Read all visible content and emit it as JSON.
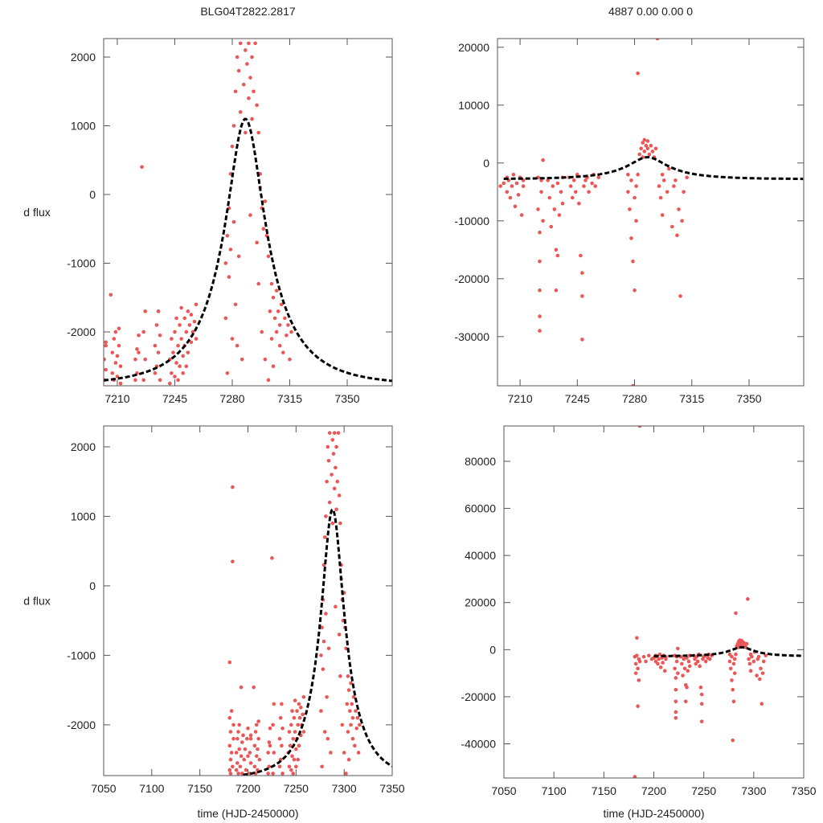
{
  "chart_data": [
    {
      "type": "scatter",
      "panel": "top-left",
      "title": "BLG04T2822.2817",
      "xlabel": "",
      "ylabel": "d flux",
      "xlim": [
        7201.7,
        7377.4
      ],
      "ylim": [
        -2784,
        2269
      ],
      "xticks": [
        7210,
        7245,
        7280,
        7315,
        7350
      ],
      "xtick_labels": [
        "7210",
        "7245",
        "7280",
        "7315",
        "7350"
      ],
      "yticks": [
        2000,
        1000,
        0,
        -1000,
        -2000
      ],
      "ytick_labels": [
        "2000",
        "1000",
        "0",
        "-1000",
        "-2000"
      ],
      "dataset": "left",
      "model": "left"
    },
    {
      "type": "scatter",
      "panel": "top-right",
      "title": "4887  0.00  0.00  0",
      "xlabel": "",
      "ylabel": "",
      "xlim": [
        7196.2,
        7383.4
      ],
      "ylim": [
        -38500,
        21500
      ],
      "xticks": [
        7210,
        7245,
        7280,
        7315,
        7350
      ],
      "xtick_labels": [
        "7210",
        "7245",
        "7280",
        "7315",
        "7350"
      ],
      "yticks": [
        20000,
        10000,
        0,
        -10000,
        -20000,
        -30000
      ],
      "ytick_labels": [
        "20000",
        "10000",
        "0",
        "-10000",
        "-20000",
        "-30000"
      ],
      "dataset": "right",
      "model": "right"
    },
    {
      "type": "scatter",
      "panel": "bottom-left",
      "title": "",
      "xlabel": "time (HJD-2450000)",
      "ylabel": "d flux",
      "xlim": [
        7050,
        7350
      ],
      "ylim": [
        -2730,
        2300
      ],
      "xticks": [
        7050,
        7100,
        7150,
        7200,
        7250,
        7300,
        7350
      ],
      "xtick_labels": [
        "7050",
        "7100",
        "7150",
        "7200",
        "7250",
        "7300",
        "7350"
      ],
      "yticks": [
        2000,
        1000,
        0,
        -1000,
        -2000
      ],
      "ytick_labels": [
        "2000",
        "1000",
        "0",
        "-1000",
        "-2000"
      ],
      "dataset": "left",
      "model": "left"
    },
    {
      "type": "scatter",
      "panel": "bottom-right",
      "title": "",
      "xlabel": "time (HJD-2450000)",
      "ylabel": "",
      "xlim": [
        7050,
        7350
      ],
      "ylim": [
        -54500,
        95000
      ],
      "xticks": [
        7050,
        7100,
        7150,
        7200,
        7250,
        7300,
        7350
      ],
      "xtick_labels": [
        "7050",
        "7100",
        "7150",
        "7200",
        "7250",
        "7300",
        "7350"
      ],
      "yticks": [
        80000,
        60000,
        40000,
        20000,
        0,
        -20000,
        -40000
      ],
      "ytick_labels": [
        "80000",
        "60000",
        "40000",
        "20000",
        "0",
        "-20000",
        "-40000"
      ],
      "dataset": "right",
      "model": "right"
    }
  ],
  "models": {
    "left": {
      "t0": 7288,
      "tE": 40,
      "u0": 0.3,
      "baseline": -2780,
      "scale": 1587,
      "t_start": 7195
    },
    "right": {
      "t0": 7288,
      "tE": 40,
      "u0": 0.3,
      "baseline": -2800,
      "scale": 1554,
      "t_start": 7200
    }
  },
  "datasets": {
    "left": [
      [
        7181,
        -2650
      ],
      [
        7181,
        -2300
      ],
      [
        7181,
        -1900
      ],
      [
        7181,
        -1100
      ],
      [
        7182,
        -2500
      ],
      [
        7182,
        -2100
      ],
      [
        7182,
        -2700
      ],
      [
        7183,
        -2400
      ],
      [
        7183,
        -1800
      ],
      [
        7184,
        1420
      ],
      [
        7184,
        350
      ],
      [
        7184,
        -2600
      ],
      [
        7185,
        -2200
      ],
      [
        7185,
        -2000
      ],
      [
        7188,
        -2650
      ],
      [
        7188,
        -2400
      ],
      [
        7189,
        -2200
      ],
      [
        7189,
        -2550
      ],
      [
        7190,
        -2100
      ],
      [
        7190,
        -2700
      ],
      [
        7191,
        -2350
      ],
      [
        7191,
        -2000
      ],
      [
        7192,
        -2600
      ],
      [
        7193,
        -1460
      ],
      [
        7193,
        -2450
      ],
      [
        7194,
        -2250
      ],
      [
        7194,
        -2700
      ],
      [
        7195,
        -2150
      ],
      [
        7196,
        -2500
      ],
      [
        7197,
        -2350
      ],
      [
        7198,
        -2650
      ],
      [
        7199,
        -2200
      ],
      [
        7200,
        -2450
      ],
      [
        7200,
        -2050
      ],
      [
        7202,
        -2700
      ],
      [
        7202,
        -2400
      ],
      [
        7203,
        -2200
      ],
      [
        7203,
        -2550
      ],
      [
        7203,
        -2150
      ],
      [
        7206,
        -1460
      ],
      [
        7207,
        -2600
      ],
      [
        7207,
        -2300
      ],
      [
        7208,
        -2100
      ],
      [
        7208,
        -2700
      ],
      [
        7209,
        -2450
      ],
      [
        7209,
        -2000
      ],
      [
        7210,
        -2350
      ],
      [
        7210,
        -2650
      ],
      [
        7211,
        -2200
      ],
      [
        7211,
        -1950
      ],
      [
        7212,
        -2500
      ],
      [
        7212,
        -2750
      ],
      [
        7221,
        -2700
      ],
      [
        7221,
        -2400
      ],
      [
        7222,
        -2250
      ],
      [
        7222,
        -2600
      ],
      [
        7223,
        -2300
      ],
      [
        7223,
        -2050
      ],
      [
        7225,
        400
      ],
      [
        7226,
        -2700
      ],
      [
        7226,
        -2000
      ],
      [
        7227,
        -1700
      ],
      [
        7227,
        -2400
      ],
      [
        7233,
        -2600
      ],
      [
        7233,
        -2200
      ],
      [
        7234,
        -1900
      ],
      [
        7234,
        -2500
      ],
      [
        7235,
        -1700
      ],
      [
        7235,
        -2300
      ],
      [
        7236,
        -2050
      ],
      [
        7236,
        -2700
      ],
      [
        7242,
        -2750
      ],
      [
        7242,
        -2400
      ],
      [
        7243,
        -2100
      ],
      [
        7243,
        -2600
      ],
      [
        7244,
        -2300
      ],
      [
        7245,
        -2000
      ],
      [
        7245,
        -2650
      ],
      [
        7246,
        -1800
      ],
      [
        7246,
        -2450
      ],
      [
        7247,
        -2200
      ],
      [
        7247,
        -2700
      ],
      [
        7248,
        -1900
      ],
      [
        7248,
        -2500
      ],
      [
        7249,
        -2100
      ],
      [
        7249,
        -1650
      ],
      [
        7250,
        -2350
      ],
      [
        7250,
        -2600
      ],
      [
        7251,
        -1800
      ],
      [
        7251,
        -2200
      ],
      [
        7252,
        -2000
      ],
      [
        7252,
        -2500
      ],
      [
        7253,
        -1700
      ],
      [
        7253,
        -2300
      ],
      [
        7254,
        -1900
      ],
      [
        7255,
        -2150
      ],
      [
        7255,
        -1750
      ],
      [
        7256,
        -2000
      ],
      [
        7257,
        -1850
      ],
      [
        7258,
        -2100
      ],
      [
        7258,
        -1600
      ],
      [
        7276,
        -1800
      ],
      [
        7276,
        -1000
      ],
      [
        7277,
        -600
      ],
      [
        7277,
        -2600
      ],
      [
        7278,
        -200
      ],
      [
        7278,
        -1200
      ],
      [
        7279,
        300
      ],
      [
        7279,
        -800
      ],
      [
        7280,
        700
      ],
      [
        7280,
        -2100
      ],
      [
        7281,
        1000
      ],
      [
        7281,
        -400
      ],
      [
        7282,
        1500
      ],
      [
        7282,
        -1600
      ],
      [
        7283,
        2000
      ],
      [
        7283,
        -2200
      ],
      [
        7284,
        1800
      ],
      [
        7284,
        -900
      ],
      [
        7285,
        2200
      ],
      [
        7285,
        1200
      ],
      [
        7286,
        -2400
      ],
      [
        7287,
        1600
      ],
      [
        7288,
        2100
      ],
      [
        7288,
        900
      ],
      [
        7289,
        1900
      ],
      [
        7290,
        1400
      ],
      [
        7290,
        2200
      ],
      [
        7291,
        1700
      ],
      [
        7291,
        -300
      ],
      [
        7292,
        2000
      ],
      [
        7292,
        1100
      ],
      [
        7293,
        1500
      ],
      [
        7294,
        2200
      ],
      [
        7295,
        1300
      ],
      [
        7295,
        -700
      ],
      [
        7296,
        900
      ],
      [
        7296,
        -1300
      ],
      [
        7297,
        300
      ],
      [
        7297,
        100
      ],
      [
        7298,
        -200
      ],
      [
        7298,
        -2000
      ],
      [
        7299,
        -500
      ],
      [
        7300,
        -2400
      ],
      [
        7300,
        -100
      ],
      [
        7301,
        -600
      ],
      [
        7302,
        -900
      ],
      [
        7302,
        -2700
      ],
      [
        7303,
        -1700
      ],
      [
        7304,
        -1300
      ],
      [
        7304,
        -2100
      ],
      [
        7305,
        -1500
      ],
      [
        7305,
        -2500
      ],
      [
        7306,
        -1800
      ],
      [
        7307,
        -1400
      ],
      [
        7307,
        -2000
      ],
      [
        7308,
        -1700
      ],
      [
        7309,
        -2200
      ],
      [
        7309,
        -1900
      ],
      [
        7310,
        -1600
      ],
      [
        7311,
        -2300
      ],
      [
        7312,
        -1800
      ],
      [
        7313,
        -2050
      ],
      [
        7314,
        -1900
      ],
      [
        7315,
        -2400
      ],
      [
        7316,
        -2000
      ]
    ],
    "right": [
      [
        7181,
        -54000
      ],
      [
        7181,
        -3000
      ],
      [
        7182,
        -6000
      ],
      [
        7182,
        -10000
      ],
      [
        7183,
        -2500
      ],
      [
        7183,
        5000
      ],
      [
        7184,
        -8000
      ],
      [
        7184,
        -24000
      ],
      [
        7185,
        -4000
      ],
      [
        7185,
        -13000
      ],
      [
        7186,
        95000
      ],
      [
        7186,
        -5000
      ],
      [
        7190,
        -3000
      ],
      [
        7192,
        -5000
      ],
      [
        7195,
        -2500
      ],
      [
        7198,
        -4000
      ],
      [
        7200,
        -3500
      ],
      [
        7202,
        -2500
      ],
      [
        7202,
        -5000
      ],
      [
        7203,
        -3000
      ],
      [
        7204,
        -6000
      ],
      [
        7205,
        -4000
      ],
      [
        7206,
        -2000
      ],
      [
        7207,
        -7500
      ],
      [
        7208,
        -3500
      ],
      [
        7209,
        -5500
      ],
      [
        7210,
        -2500
      ],
      [
        7211,
        -9000
      ],
      [
        7212,
        -4000
      ],
      [
        7212,
        -3000
      ],
      [
        7221,
        -2500
      ],
      [
        7221,
        -8000
      ],
      [
        7222,
        -12000
      ],
      [
        7222,
        -17000
      ],
      [
        7222,
        -22000
      ],
      [
        7222,
        -26500
      ],
      [
        7222,
        -29000
      ],
      [
        7223,
        -5000
      ],
      [
        7223,
        -3000
      ],
      [
        7224,
        -10000
      ],
      [
        7224,
        500
      ],
      [
        7227,
        -3000
      ],
      [
        7228,
        -6000
      ],
      [
        7229,
        -11000
      ],
      [
        7230,
        -4000
      ],
      [
        7231,
        -8000
      ],
      [
        7232,
        -22000
      ],
      [
        7232,
        -15000
      ],
      [
        7233,
        -16000
      ],
      [
        7233,
        -3500
      ],
      [
        7234,
        -9000
      ],
      [
        7235,
        -5000
      ],
      [
        7236,
        -7000
      ],
      [
        7236,
        -2500
      ],
      [
        7240,
        -2500
      ],
      [
        7241,
        -4000
      ],
      [
        7242,
        -6000
      ],
      [
        7243,
        -3000
      ],
      [
        7244,
        -5000
      ],
      [
        7245,
        -2000
      ],
      [
        7246,
        -7000
      ],
      [
        7247,
        -16000
      ],
      [
        7248,
        -19000
      ],
      [
        7248,
        -23000
      ],
      [
        7248,
        -30500
      ],
      [
        7249,
        -4000
      ],
      [
        7250,
        -3000
      ],
      [
        7251,
        -2500
      ],
      [
        7252,
        -5000
      ],
      [
        7254,
        -3500
      ],
      [
        7255,
        -2000
      ],
      [
        7256,
        -4000
      ],
      [
        7258,
        -2500
      ],
      [
        7276,
        -2000
      ],
      [
        7276,
        -5000
      ],
      [
        7277,
        -8000
      ],
      [
        7278,
        -13000
      ],
      [
        7278,
        -3000
      ],
      [
        7279,
        -17000
      ],
      [
        7279,
        -38500
      ],
      [
        7280,
        -6000
      ],
      [
        7280,
        -22000
      ],
      [
        7281,
        -10000
      ],
      [
        7281,
        -4000
      ],
      [
        7282,
        15500
      ],
      [
        7282,
        -2000
      ],
      [
        7283,
        1500
      ],
      [
        7284,
        2500
      ],
      [
        7285,
        3500
      ],
      [
        7285,
        1000
      ],
      [
        7286,
        4000
      ],
      [
        7286,
        2000
      ],
      [
        7287,
        3000
      ],
      [
        7288,
        2500
      ],
      [
        7288,
        3800
      ],
      [
        7289,
        1500
      ],
      [
        7290,
        3000
      ],
      [
        7291,
        2000
      ],
      [
        7292,
        1000
      ],
      [
        7293,
        2500
      ],
      [
        7294,
        21500
      ],
      [
        7295,
        -4000
      ],
      [
        7296,
        -6000
      ],
      [
        7297,
        -9000
      ],
      [
        7297,
        -2000
      ],
      [
        7298,
        -3000
      ],
      [
        7300,
        -5000
      ],
      [
        7301,
        -1000
      ],
      [
        7303,
        -11000
      ],
      [
        7304,
        -4000
      ],
      [
        7305,
        -3000
      ],
      [
        7306,
        -12500
      ],
      [
        7307,
        -8000
      ],
      [
        7308,
        -23000
      ],
      [
        7309,
        -10000
      ],
      [
        7310,
        -5000
      ],
      [
        7312,
        -2500
      ]
    ]
  },
  "colors": {
    "points": "#eb5757",
    "model": "#000000",
    "frame": "#555555"
  }
}
